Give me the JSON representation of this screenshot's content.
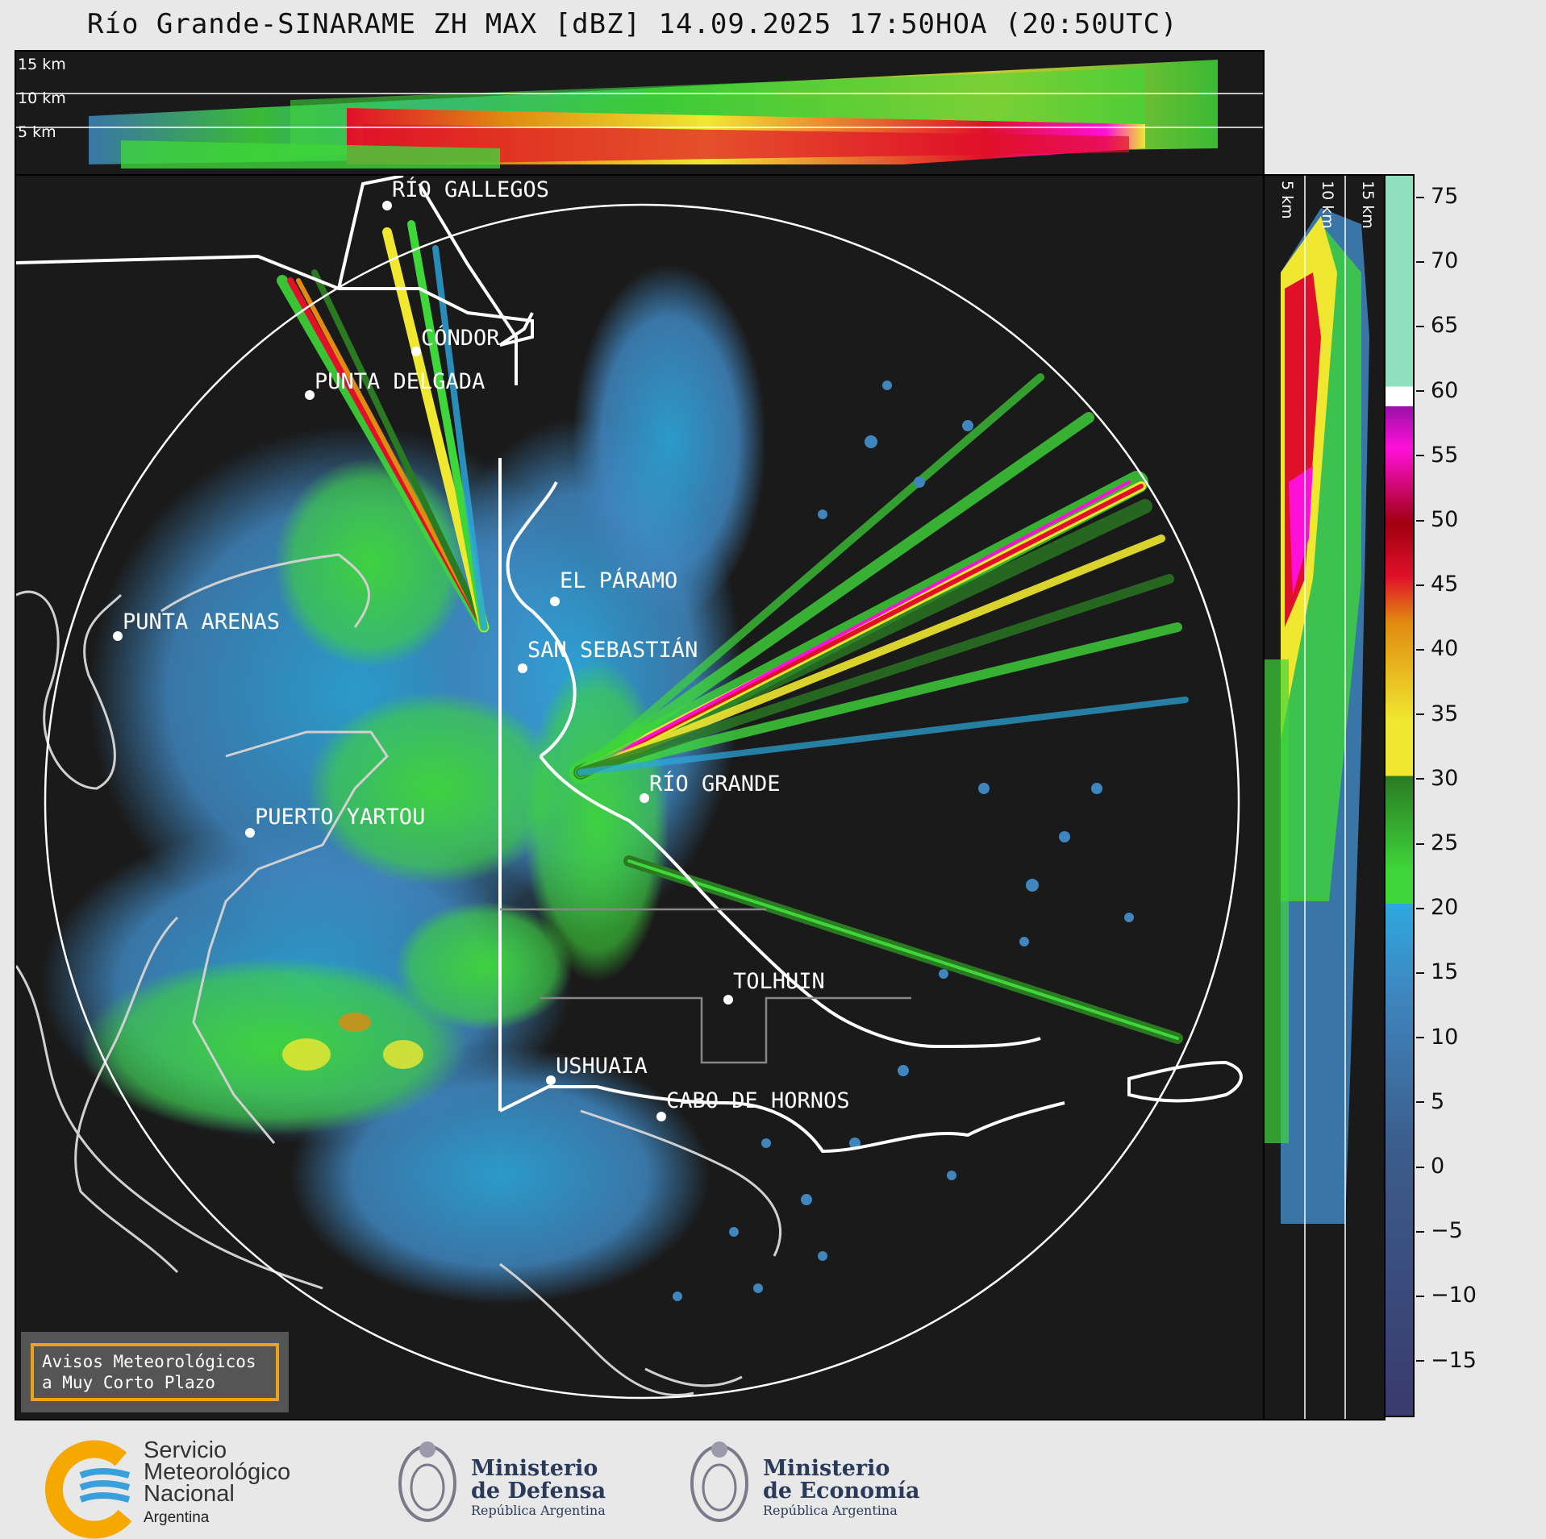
{
  "title": "Río Grande-SINARAME ZH MAX [dBZ] 14.09.2025 17:50HOA (20:50UTC)",
  "top_altitudes": [
    "15 km",
    "10 km",
    "5 km"
  ],
  "side_altitudes": [
    "5 km",
    "10 km",
    "15 km"
  ],
  "cities": [
    {
      "name": "RÍO GALLEGOS"
    },
    {
      "name": "CÓNDOR"
    },
    {
      "name": "PUNTA DELGADA"
    },
    {
      "name": "EL PÁRAMO"
    },
    {
      "name": "PUNTA ARENAS"
    },
    {
      "name": "SAN SEBASTIÁN"
    },
    {
      "name": "RÍO GRANDE"
    },
    {
      "name": "PUERTO YARTOU"
    },
    {
      "name": "TOLHUIN"
    },
    {
      "name": "USHUAIA"
    },
    {
      "name": "CABO DE HORNOS"
    }
  ],
  "colorbar": {
    "ticks": [
      "75",
      "70",
      "65",
      "60",
      "55",
      "50",
      "45",
      "40",
      "35",
      "30",
      "25",
      "20",
      "15",
      "10",
      "5",
      "0",
      "−5",
      "−10",
      "−15"
    ],
    "colors": {
      "very_low": "#3a3a6e",
      "low": "#3b5e8c",
      "blue": "#3f86bf",
      "light_blue": "#2da9de",
      "green": "#3fd63a",
      "dark_green": "#2a7a22",
      "yellow": "#f0e830",
      "orange": "#e08a10",
      "red": "#e0102a",
      "dark_red": "#a00010",
      "magenta": "#ff10d8",
      "purple": "#9a10a8",
      "white": "#ffffff",
      "mint": "#90e0c0"
    }
  },
  "notice": {
    "line1": "Avisos Meteorológicos",
    "line2": "a Muy Corto Plazo"
  },
  "footer": {
    "smn": [
      "Servicio",
      "Meteorológico",
      "Nacional"
    ],
    "smn_country": "Argentina",
    "defensa": {
      "line1": "Ministerio",
      "line2": "de Defensa",
      "sub": "República Argentina"
    },
    "economia": {
      "line1": "Ministerio",
      "line2": "de Economía",
      "sub": "República Argentina"
    }
  }
}
